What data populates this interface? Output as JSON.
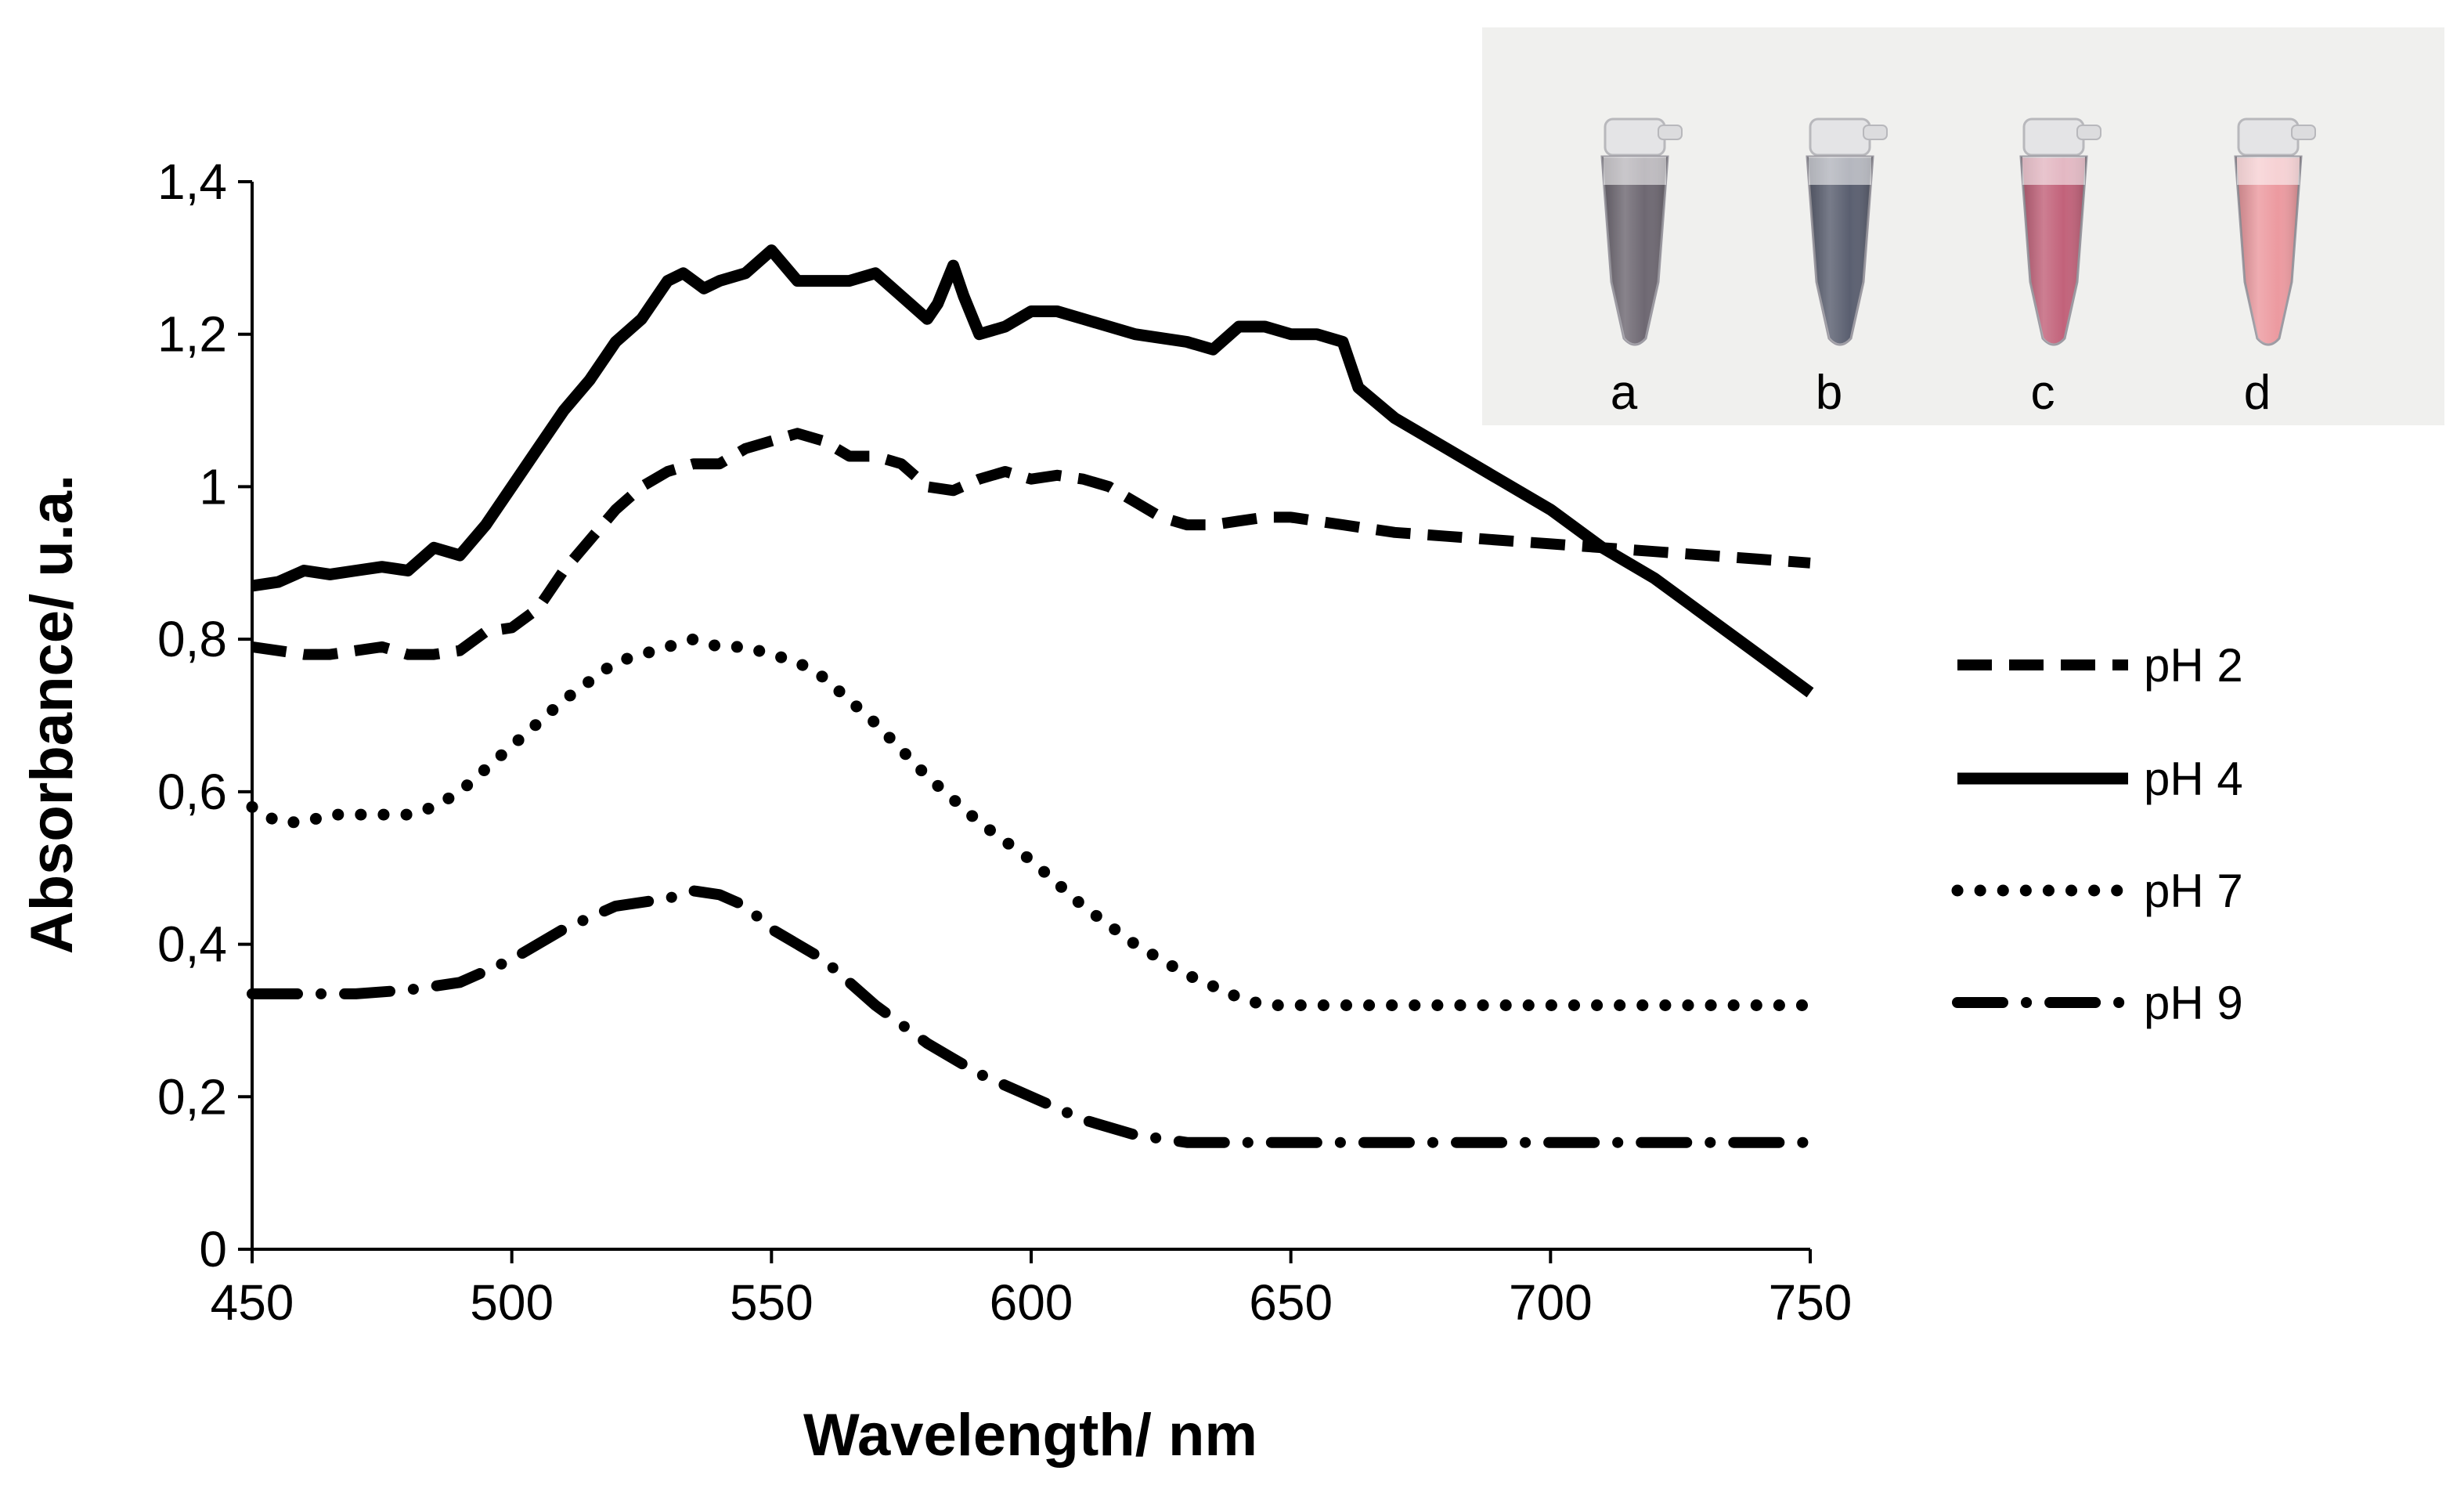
{
  "chart_data": {
    "type": "line",
    "title": "",
    "xlabel": "Wavelength/ nm",
    "ylabel": "Absorbance/ u.a.",
    "xlim": [
      450,
      750
    ],
    "ylim": [
      0,
      1.4
    ],
    "grid": false,
    "legend_position": "right",
    "x_tick_labels": [
      "450",
      "500",
      "550",
      "600",
      "650",
      "700",
      "750"
    ],
    "x_ticks": [
      450,
      500,
      550,
      600,
      650,
      700,
      750
    ],
    "y_tick_labels": [
      "0",
      "0,2",
      "0,4",
      "0,6",
      "0,8",
      "1",
      "1,2",
      "1,4"
    ],
    "y_ticks": [
      0,
      0.2,
      0.4,
      0.6,
      0.8,
      1.0,
      1.2,
      1.4
    ],
    "series": [
      {
        "name": "pH 2",
        "style": "dashed",
        "x": [
          450,
          455,
          460,
          465,
          470,
          475,
          480,
          485,
          490,
          495,
          500,
          505,
          510,
          515,
          520,
          525,
          530,
          535,
          540,
          545,
          550,
          555,
          560,
          565,
          570,
          575,
          580,
          585,
          590,
          595,
          600,
          605,
          610,
          615,
          620,
          625,
          630,
          635,
          640,
          645,
          650,
          660,
          670,
          680,
          690,
          700,
          710,
          720,
          730,
          740,
          750
        ],
        "y": [
          0.79,
          0.785,
          0.78,
          0.78,
          0.785,
          0.79,
          0.78,
          0.78,
          0.785,
          0.81,
          0.815,
          0.84,
          0.89,
          0.93,
          0.97,
          1.0,
          1.02,
          1.03,
          1.03,
          1.05,
          1.06,
          1.07,
          1.06,
          1.04,
          1.04,
          1.03,
          1.0,
          0.995,
          1.01,
          1.02,
          1.01,
          1.015,
          1.01,
          1.0,
          0.98,
          0.96,
          0.95,
          0.95,
          0.955,
          0.96,
          0.96,
          0.95,
          0.94,
          0.935,
          0.93,
          0.925,
          0.92,
          0.915,
          0.91,
          0.905,
          0.9
        ]
      },
      {
        "name": "pH 4",
        "style": "solid",
        "x": [
          450,
          455,
          460,
          465,
          470,
          475,
          480,
          485,
          490,
          495,
          500,
          505,
          510,
          515,
          520,
          525,
          530,
          533,
          537,
          540,
          545,
          550,
          555,
          560,
          565,
          570,
          575,
          580,
          582,
          585,
          587,
          590,
          595,
          600,
          605,
          610,
          620,
          630,
          635,
          640,
          645,
          650,
          655,
          660,
          663,
          670,
          680,
          690,
          700,
          710,
          720,
          730,
          740,
          750
        ],
        "y": [
          0.87,
          0.875,
          0.89,
          0.885,
          0.89,
          0.895,
          0.89,
          0.92,
          0.91,
          0.95,
          1.0,
          1.05,
          1.1,
          1.14,
          1.19,
          1.22,
          1.27,
          1.28,
          1.26,
          1.27,
          1.28,
          1.31,
          1.27,
          1.27,
          1.27,
          1.28,
          1.25,
          1.22,
          1.24,
          1.29,
          1.25,
          1.2,
          1.21,
          1.23,
          1.23,
          1.22,
          1.2,
          1.19,
          1.18,
          1.21,
          1.21,
          1.2,
          1.2,
          1.19,
          1.13,
          1.09,
          1.05,
          1.01,
          0.97,
          0.92,
          0.88,
          0.83,
          0.78,
          0.73
        ]
      },
      {
        "name": "pH 7",
        "style": "dotted",
        "x": [
          450,
          455,
          460,
          465,
          470,
          475,
          480,
          485,
          490,
          495,
          500,
          510,
          520,
          530,
          535,
          540,
          545,
          550,
          555,
          560,
          570,
          580,
          590,
          600,
          610,
          620,
          630,
          640,
          645,
          650,
          655,
          660,
          670,
          680,
          690,
          700,
          710,
          720,
          730,
          740,
          750
        ],
        "y": [
          0.58,
          0.56,
          0.56,
          0.57,
          0.57,
          0.57,
          0.57,
          0.58,
          0.6,
          0.63,
          0.66,
          0.72,
          0.77,
          0.79,
          0.8,
          0.79,
          0.79,
          0.78,
          0.77,
          0.75,
          0.69,
          0.62,
          0.56,
          0.51,
          0.45,
          0.4,
          0.36,
          0.33,
          0.32,
          0.32,
          0.32,
          0.32,
          0.32,
          0.32,
          0.32,
          0.32,
          0.32,
          0.32,
          0.32,
          0.32,
          0.32
        ]
      },
      {
        "name": "pH 9",
        "style": "dash-dot",
        "x": [
          450,
          460,
          470,
          480,
          490,
          500,
          510,
          520,
          530,
          535,
          540,
          545,
          550,
          560,
          570,
          580,
          585,
          590,
          600,
          610,
          620,
          630,
          640,
          650,
          660,
          670,
          680,
          690,
          700,
          710,
          720,
          730,
          740,
          750
        ],
        "y": [
          0.335,
          0.335,
          0.335,
          0.34,
          0.35,
          0.38,
          0.42,
          0.45,
          0.46,
          0.47,
          0.465,
          0.45,
          0.42,
          0.38,
          0.32,
          0.27,
          0.25,
          0.23,
          0.2,
          0.17,
          0.15,
          0.14,
          0.14,
          0.14,
          0.14,
          0.14,
          0.14,
          0.14,
          0.14,
          0.14,
          0.14,
          0.14,
          0.14,
          0.14
        ]
      }
    ],
    "inset": {
      "description_type": "photograph",
      "tube_labels": [
        "a",
        "b",
        "c",
        "d"
      ],
      "tube_colors": [
        "#6e6872",
        "#5a5f70",
        "#c2627a",
        "#ec9aa0"
      ]
    }
  },
  "legend": {
    "items": [
      "pH 2",
      "pH 4",
      "pH 7",
      "pH 9"
    ]
  },
  "colors": {
    "line": "#000000",
    "inset_bg": "#f0f0ee"
  }
}
